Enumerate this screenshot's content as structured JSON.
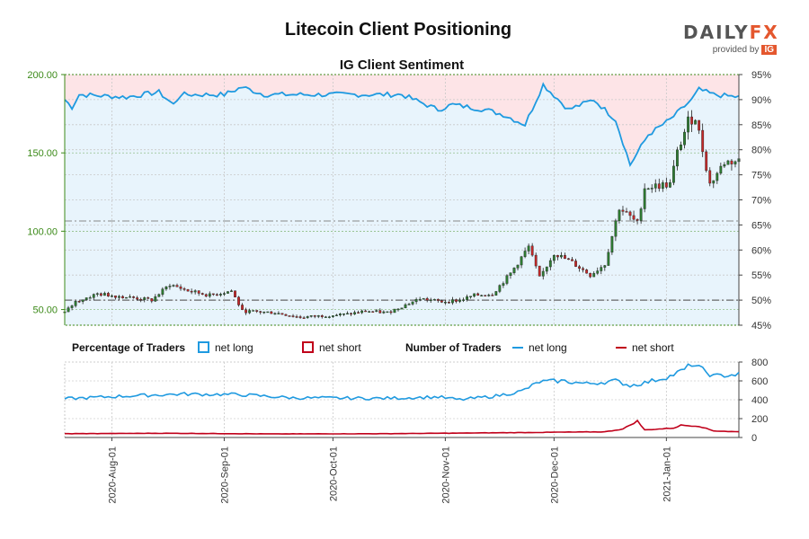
{
  "header": {
    "title": "Litecoin Client Positioning",
    "subtitle": "IG Client Sentiment",
    "brand": "DAILY",
    "brand_fx": "FX",
    "brand_sub": "provided by",
    "brand_ig": "IG"
  },
  "colors": {
    "long": "#1f9ae0",
    "short": "#c0001a",
    "candle_up": "#2e7d32",
    "candle_down": "#c62828",
    "long_fill": "#e8f4fc",
    "short_fill": "#fde4e7",
    "price_axis": "#3c8a19",
    "brand_accent": "#e4572e"
  },
  "legend": {
    "pct_header": "Percentage of Traders",
    "pct_long": "net long",
    "pct_short": "net short",
    "num_header": "Number of Traders",
    "num_long": "net long",
    "num_short": "net short"
  },
  "chart_data": [
    {
      "type": "candlestick",
      "title": "IG Client Sentiment",
      "series_name": "Litecoin price",
      "y_left_ticks": [
        "50.00",
        "100.00",
        "150.00",
        "200.00"
      ],
      "y_left_range": [
        40,
        200
      ],
      "y_right_ticks": [
        "45%",
        "50%",
        "55%",
        "60%",
        "65%",
        "70%",
        "75%",
        "80%",
        "85%",
        "90%",
        "95%"
      ],
      "y_right_range": [
        45,
        95
      ],
      "x_range": [
        "2020-07-19",
        "2021-01-21"
      ],
      "reference_lines": {
        "net_long_pct": 50,
        "price": 106.5
      },
      "price_waypoints": [
        [
          "2020-07-19",
          48
        ],
        [
          "2020-07-22",
          55
        ],
        [
          "2020-07-28",
          60
        ],
        [
          "2020-08-05",
          58
        ],
        [
          "2020-08-12",
          56
        ],
        [
          "2020-08-17",
          66
        ],
        [
          "2020-08-22",
          62
        ],
        [
          "2020-08-28",
          59
        ],
        [
          "2020-09-03",
          62
        ],
        [
          "2020-09-06",
          49
        ],
        [
          "2020-09-15",
          48
        ],
        [
          "2020-09-22",
          45
        ],
        [
          "2020-09-28",
          46
        ],
        [
          "2020-10-05",
          47
        ],
        [
          "2020-10-10",
          49
        ],
        [
          "2020-10-16",
          48
        ],
        [
          "2020-10-20",
          52
        ],
        [
          "2020-10-25",
          57
        ],
        [
          "2020-10-31",
          55
        ],
        [
          "2020-11-05",
          56
        ],
        [
          "2020-11-09",
          59
        ],
        [
          "2020-11-14",
          60
        ],
        [
          "2020-11-19",
          73
        ],
        [
          "2020-11-24",
          90
        ],
        [
          "2020-11-27",
          70
        ],
        [
          "2020-12-01",
          86
        ],
        [
          "2020-12-06",
          80
        ],
        [
          "2020-12-11",
          72
        ],
        [
          "2020-12-15",
          79
        ],
        [
          "2020-12-19",
          115
        ],
        [
          "2020-12-24",
          105
        ],
        [
          "2020-12-26",
          128
        ],
        [
          "2021-01-02",
          130
        ],
        [
          "2021-01-04",
          150
        ],
        [
          "2021-01-07",
          170
        ],
        [
          "2021-01-09",
          173
        ],
        [
          "2021-01-11",
          152
        ],
        [
          "2021-01-13",
          130
        ],
        [
          "2021-01-17",
          144
        ],
        [
          "2021-01-21",
          145
        ]
      ],
      "net_long_pct_waypoints": [
        [
          "2020-07-19",
          90
        ],
        [
          "2020-07-21",
          88.5
        ],
        [
          "2020-07-23",
          91
        ],
        [
          "2020-08-05",
          90.5
        ],
        [
          "2020-08-14",
          91.5
        ],
        [
          "2020-08-18",
          89
        ],
        [
          "2020-08-20",
          91
        ],
        [
          "2020-09-01",
          91
        ],
        [
          "2020-09-06",
          92.5
        ],
        [
          "2020-09-12",
          91
        ],
        [
          "2020-10-01",
          91
        ],
        [
          "2020-10-20",
          91
        ],
        [
          "2020-10-30",
          88
        ],
        [
          "2020-11-03",
          89
        ],
        [
          "2020-11-12",
          88
        ],
        [
          "2020-11-17",
          87
        ],
        [
          "2020-11-23",
          85
        ],
        [
          "2020-11-28",
          93
        ],
        [
          "2020-12-05",
          88
        ],
        [
          "2020-12-12",
          90
        ],
        [
          "2020-12-18",
          86
        ],
        [
          "2020-12-22",
          77
        ],
        [
          "2020-12-27",
          83
        ],
        [
          "2021-01-02",
          86
        ],
        [
          "2021-01-08",
          90
        ],
        [
          "2021-01-10",
          92
        ],
        [
          "2021-01-14",
          91
        ],
        [
          "2021-01-21",
          90.5
        ]
      ]
    },
    {
      "type": "line",
      "title": "Number of Traders",
      "y_ticks": [
        "0",
        "200",
        "400",
        "600",
        "800"
      ],
      "y_range": [
        0,
        800
      ],
      "x_tick_labels": [
        "2020-Aug-01",
        "2020-Sep-01",
        "2020-Oct-01",
        "2020-Nov-01",
        "2020-Dec-01",
        "2021-Jan-01"
      ],
      "series": [
        {
          "name": "net long",
          "waypoints": [
            [
              "2020-07-19",
              410
            ],
            [
              "2020-08-05",
              440
            ],
            [
              "2020-08-20",
              460
            ],
            [
              "2020-09-05",
              455
            ],
            [
              "2020-09-20",
              420
            ],
            [
              "2020-10-15",
              415
            ],
            [
              "2020-10-30",
              430
            ],
            [
              "2020-11-05",
              400
            ],
            [
              "2020-11-15",
              440
            ],
            [
              "2020-11-22",
              490
            ],
            [
              "2020-11-27",
              590
            ],
            [
              "2020-12-03",
              600
            ],
            [
              "2020-12-10",
              570
            ],
            [
              "2020-12-18",
              600
            ],
            [
              "2020-12-22",
              550
            ],
            [
              "2020-12-26",
              580
            ],
            [
              "2021-01-02",
              650
            ],
            [
              "2021-01-06",
              720
            ],
            [
              "2021-01-08",
              780
            ],
            [
              "2021-01-10",
              740
            ],
            [
              "2021-01-14",
              650
            ],
            [
              "2021-01-21",
              670
            ]
          ]
        },
        {
          "name": "net short",
          "waypoints": [
            [
              "2020-07-19",
              40
            ],
            [
              "2020-08-15",
              45
            ],
            [
              "2020-09-15",
              38
            ],
            [
              "2020-10-15",
              40
            ],
            [
              "2020-11-10",
              48
            ],
            [
              "2020-11-30",
              55
            ],
            [
              "2020-12-15",
              60
            ],
            [
              "2020-12-20",
              90
            ],
            [
              "2020-12-24",
              175
            ],
            [
              "2020-12-26",
              80
            ],
            [
              "2021-01-03",
              100
            ],
            [
              "2021-01-05",
              130
            ],
            [
              "2021-01-10",
              120
            ],
            [
              "2021-01-14",
              70
            ],
            [
              "2021-01-21",
              60
            ]
          ]
        }
      ]
    }
  ]
}
